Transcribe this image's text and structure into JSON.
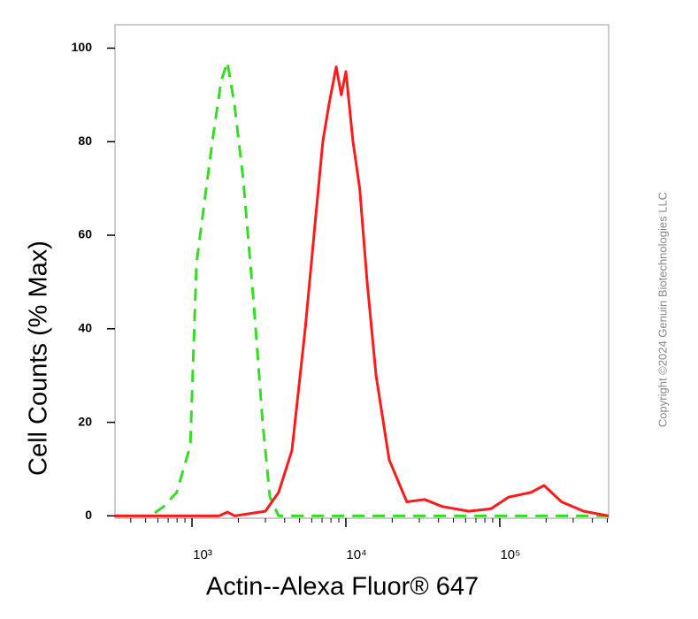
{
  "chart_data": {
    "type": "line",
    "y_label": "Cell Counts (% Max)",
    "x_label": "Actin--Alexa Fluor® 647",
    "copyright": "Copyright ©2024 Genuin Biotechnologies LLC",
    "x_log": true,
    "xlim": [
      316,
      510000
    ],
    "xticks": [
      {
        "value": 1000,
        "label": "10³"
      },
      {
        "value": 10000,
        "label": "10⁴"
      },
      {
        "value": 100000,
        "label": "10⁵"
      }
    ],
    "x_minor_ticks": [
      400,
      500,
      600,
      700,
      800,
      900,
      2000,
      3000,
      4000,
      5000,
      6000,
      7000,
      8000,
      9000,
      20000,
      30000,
      40000,
      50000,
      60000,
      70000,
      80000,
      90000,
      200000,
      300000,
      400000,
      500000
    ],
    "ylim": [
      -0.5,
      105
    ],
    "yticks": [
      0,
      20,
      40,
      60,
      80,
      100
    ],
    "series": [
      {
        "color": "#33dd22",
        "dashed": true,
        "x": [
          316,
          537,
          655,
          795,
          975,
          1070,
          1355,
          1547,
          1698,
          1888,
          2150,
          2525,
          2880,
          3210,
          3655,
          509000
        ],
        "values": [
          0,
          0,
          2,
          5,
          15,
          54,
          80,
          93,
          97,
          88,
          72,
          45,
          20,
          4,
          0,
          0
        ]
      },
      {
        "color": "#ff1a1a",
        "dashed": false,
        "x": [
          316,
          1500,
          1700,
          1900,
          3000,
          3655,
          4460,
          5440,
          6200,
          7080,
          7770,
          8650,
          9340,
          10000,
          11120,
          12300,
          13750,
          15700,
          19100,
          24900,
          32500,
          42300,
          63000,
          87600,
          114000,
          159000,
          194000,
          252000,
          351000,
          509000
        ],
        "values": [
          0,
          0,
          0.8,
          0,
          1,
          5,
          14,
          40,
          60,
          80,
          88,
          96,
          90,
          95,
          80,
          70,
          50,
          30,
          12,
          3,
          3.5,
          2,
          1,
          1.5,
          4,
          5,
          6.5,
          3,
          1,
          0
        ]
      }
    ]
  }
}
